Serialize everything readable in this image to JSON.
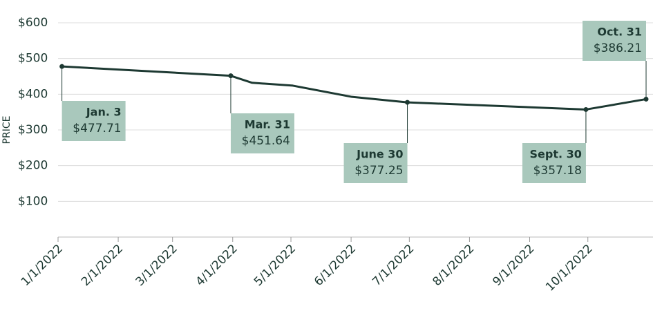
{
  "chart_data": {
    "type": "line",
    "y_label": "PRICE",
    "x": [
      "2022-01-03",
      "2022-03-31",
      "2022-04-11",
      "2022-05-02",
      "2022-06-01",
      "2022-06-30",
      "2022-09-30",
      "2022-10-31"
    ],
    "series": [
      {
        "name": "Price",
        "color": "#1d3932",
        "values": [
          477.71,
          451.64,
          432,
          424,
          393,
          377.25,
          357.18,
          386.21
        ],
        "value_labels": [
          "$477.71",
          "$451.64",
          null,
          null,
          null,
          "$377.25",
          "$357.18",
          "$386.21"
        ],
        "point_labels": [
          "Jan. 3",
          "Mar. 31",
          null,
          null,
          null,
          "June 30",
          "Sept. 30",
          "Oct. 31"
        ]
      }
    ],
    "annotation_color": "#a9c8bc",
    "xlim": [
      "2022-01-01",
      "2022-10-31"
    ],
    "xticks": [
      {
        "value": "2022-01-01",
        "label": "1/1/2022"
      },
      {
        "value": "2022-02-01",
        "label": "2/1/2022"
      },
      {
        "value": "2022-03-01",
        "label": "3/1/2022"
      },
      {
        "value": "2022-04-01",
        "label": "4/1/2022"
      },
      {
        "value": "2022-05-01",
        "label": "5/1/2022"
      },
      {
        "value": "2022-06-01",
        "label": "6/1/2022"
      },
      {
        "value": "2022-07-01",
        "label": "7/1/2022"
      },
      {
        "value": "2022-08-01",
        "label": "8/1/2022"
      },
      {
        "value": "2022-09-01",
        "label": "9/1/2022"
      },
      {
        "value": "2022-10-01",
        "label": "10/1/2022"
      }
    ],
    "ylim": [
      0,
      600
    ],
    "yticks": [
      {
        "value": 100,
        "label": "$100"
      },
      {
        "value": 200,
        "label": "$200"
      },
      {
        "value": 300,
        "label": "$300"
      },
      {
        "value": 400,
        "label": "$400"
      },
      {
        "value": 500,
        "label": "$500"
      },
      {
        "value": 600,
        "label": "$600"
      }
    ],
    "grid": true
  }
}
